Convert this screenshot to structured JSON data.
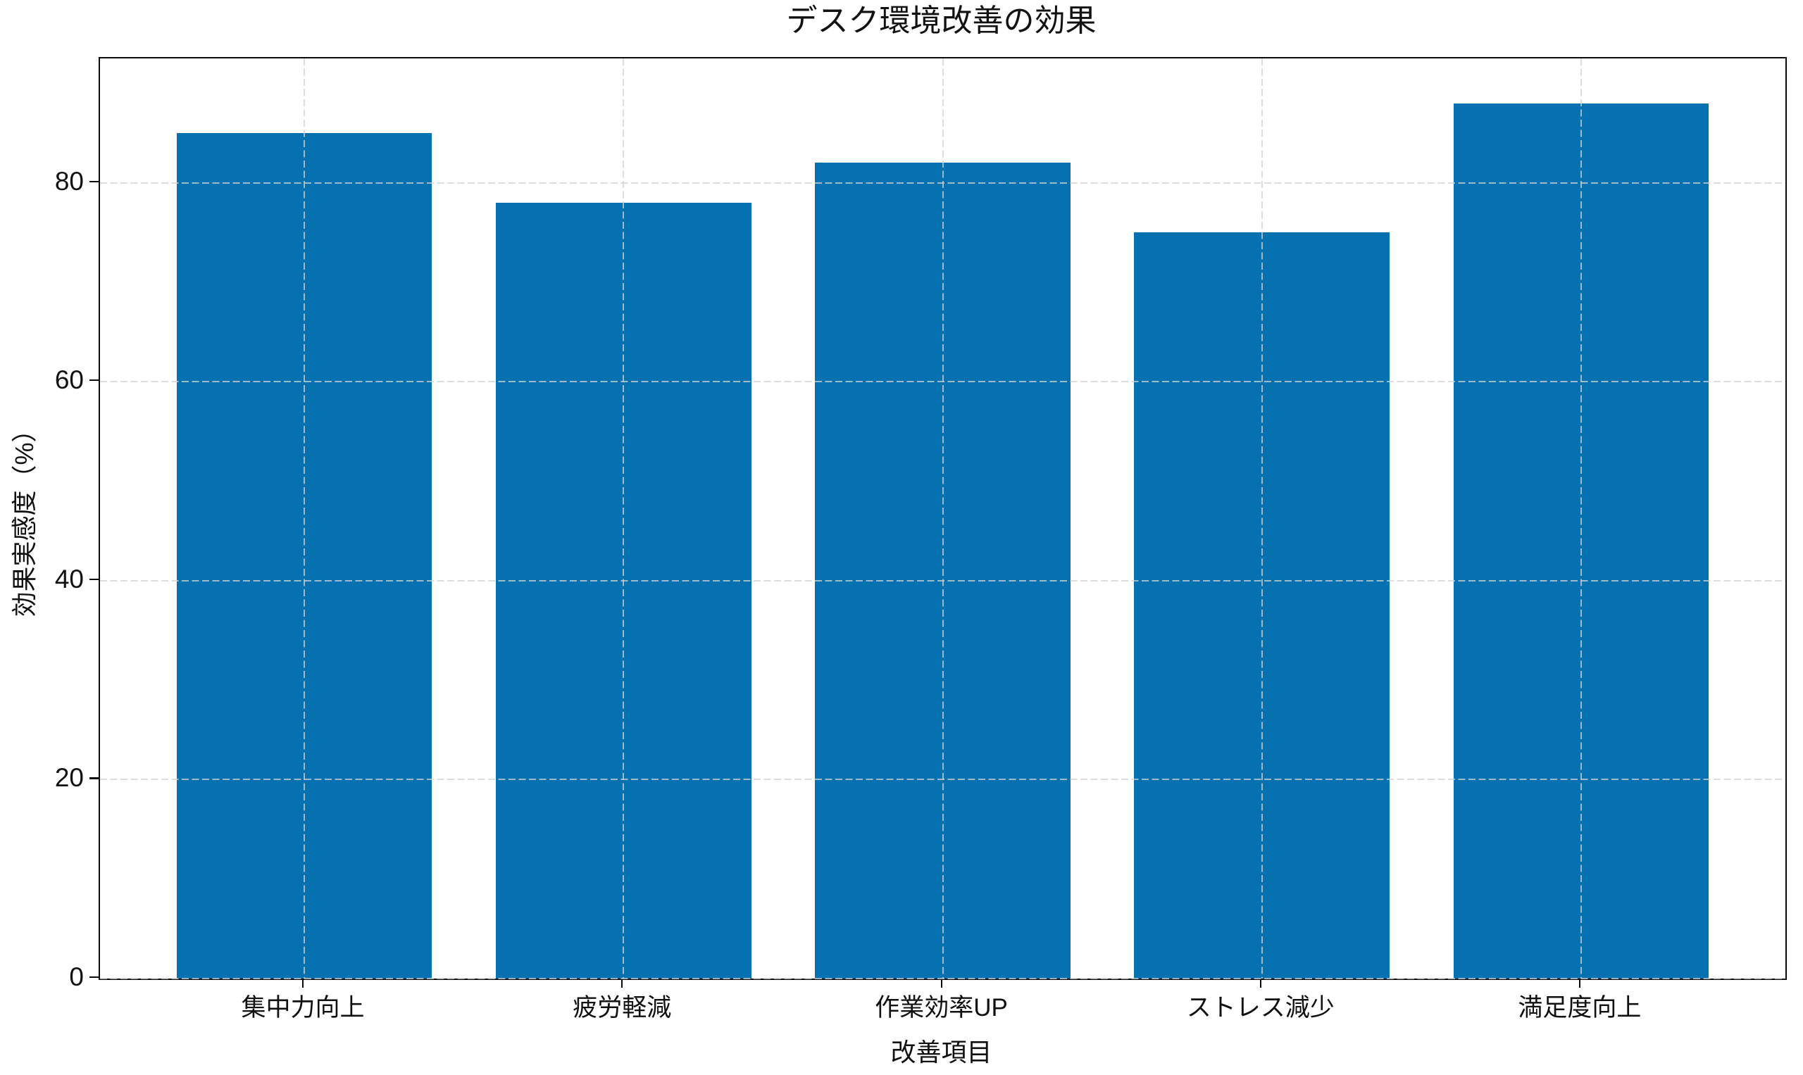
{
  "chart_data": {
    "type": "bar",
    "title": "デスク環境改善の効果",
    "xlabel": "改善項目",
    "ylabel": "効果実感度（%）",
    "categories": [
      "集中力向上",
      "疲労軽減",
      "作業効率UP",
      "ストレス減少",
      "満足度向上"
    ],
    "values": [
      85,
      78,
      82,
      75,
      88
    ],
    "yticks": [
      0,
      20,
      40,
      60,
      80
    ],
    "ylim": [
      0,
      92.5
    ],
    "bar_color": "#0571b0",
    "grid": "dashed, both axes, drawn over bars",
    "legend": "none",
    "background_color": "#ffffff",
    "spine_color": "#0c0c0c"
  }
}
